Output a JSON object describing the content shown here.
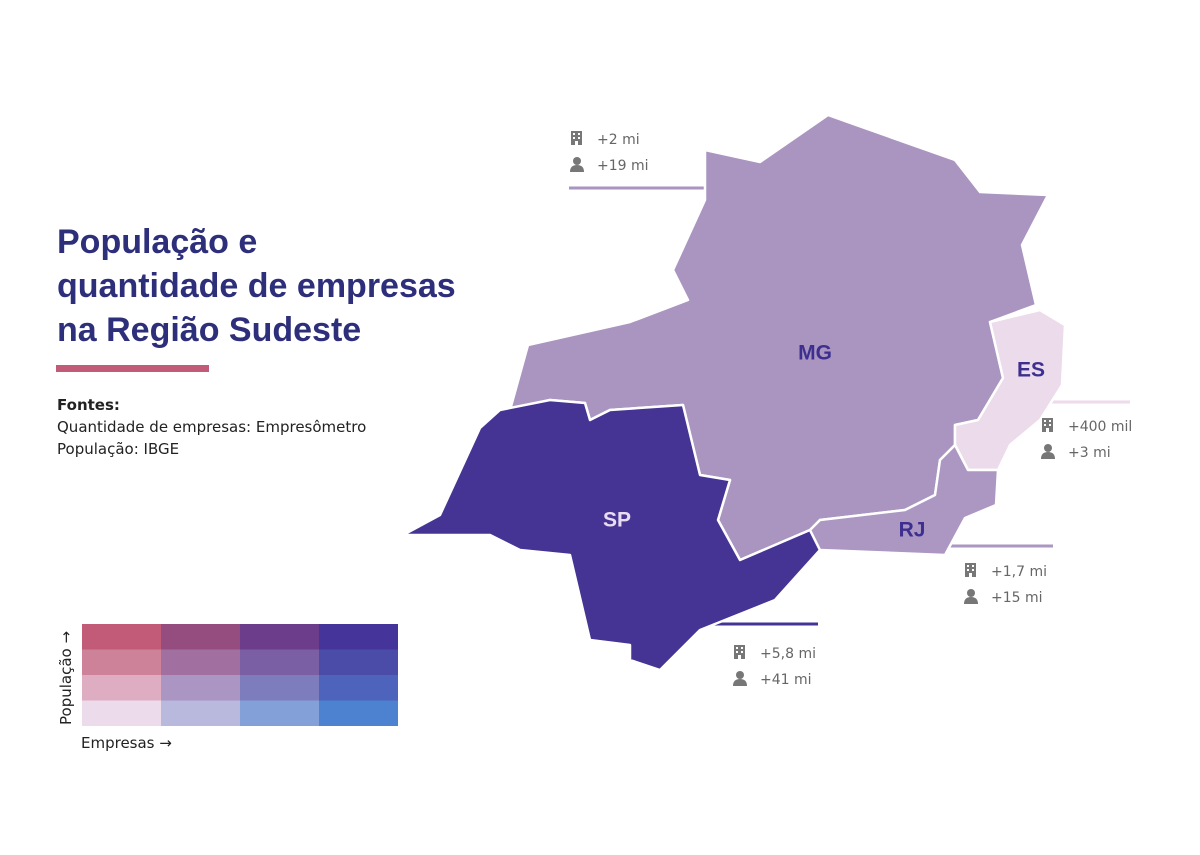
{
  "title_lines": [
    "População e",
    "quantidade de empresas",
    "na Região Sudeste"
  ],
  "sources": {
    "heading": "Fontes:",
    "lines": [
      "Quantidade de empresas: Empresômetro",
      "População: IBGE"
    ]
  },
  "regions": [
    {
      "label": "MG",
      "color": "#a995c0",
      "label_color": "#3d2f8f",
      "companies": "+2 mi",
      "population": "+19 mi"
    },
    {
      "label": "ES",
      "color": "#ecdbea",
      "label_color": "#3d2f8f",
      "companies": "+400 mil",
      "population": "+3 mi"
    },
    {
      "label": "RJ",
      "color": "#ab97c2",
      "label_color": "#3d2f8f",
      "companies": "+1,7 mi",
      "population": "+15 mi"
    },
    {
      "label": "SP",
      "color": "#453494",
      "label_color": "#eadcf0",
      "companies": "+5,8 mi",
      "population": "+41 mi"
    }
  ],
  "legend": {
    "y_label": "População →",
    "x_label": "Empresas →",
    "colors": [
      [
        "#c15b78",
        "#954d7f",
        "#6c3d8a",
        "#45359a"
      ],
      [
        "#cd8299",
        "#a170a0",
        "#7a5fa5",
        "#4b4ca8"
      ],
      [
        "#dfadc2",
        "#ab95c3",
        "#7d7dbd",
        "#4e63bb"
      ],
      [
        "#ecdbea",
        "#b9b8dd",
        "#84a0d9",
        "#4c82cf"
      ]
    ]
  }
}
